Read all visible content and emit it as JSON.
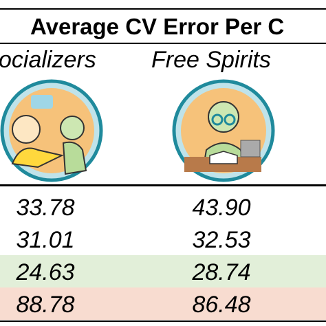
{
  "header": {
    "title": "Average CV Error Per C",
    "columns": [
      "ocializers",
      "Free Spirits"
    ]
  },
  "table": {
    "rows": [
      [
        "33.78",
        "43.90"
      ],
      [
        "31.01",
        "32.53"
      ],
      [
        "24.63",
        "28.74"
      ],
      [
        "88.78",
        "86.48"
      ]
    ],
    "row_colors": [
      "#ffffff",
      "#ffffff",
      "#e2efd9",
      "#f8dcd0"
    ]
  }
}
